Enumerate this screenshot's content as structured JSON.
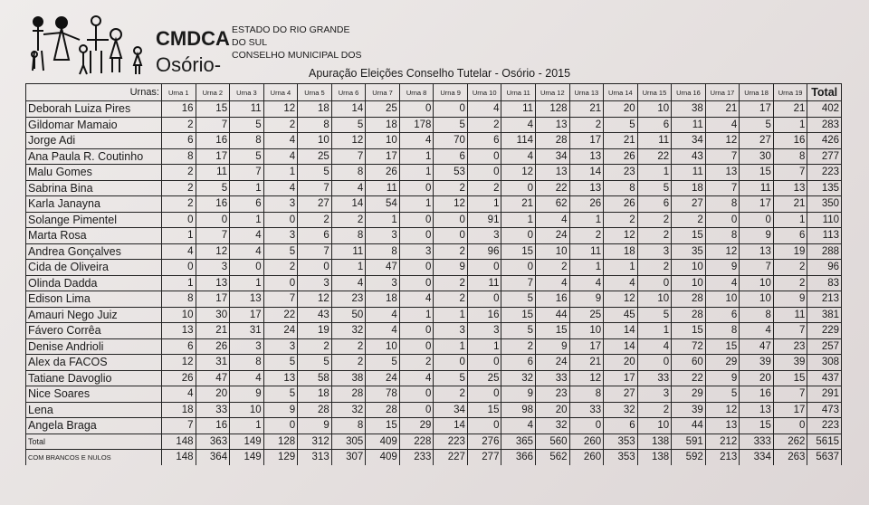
{
  "header": {
    "org": "CMDCA",
    "city": "Osório-",
    "lines": [
      "ESTADO DO RIO GRANDE",
      "DO SUL",
      "CONSELHO MUNICIPAL DOS"
    ],
    "title": "Apuração Eleições Conselho Tutelar - Osório - 2015"
  },
  "table": {
    "corner_label": "Urnas:",
    "columns": [
      "Urna 1",
      "Urna 2",
      "Urna 3",
      "Urna 4",
      "Urna 5",
      "Urna 6",
      "Urna 7",
      "Urna 8",
      "Urna 9",
      "Urna 10",
      "Urna 11",
      "Urna 12",
      "Urna 13",
      "Urna 14",
      "Urna 15",
      "Urna 16",
      "Urna 17",
      "Urna 18",
      "Urna 19",
      "Total"
    ],
    "rows": [
      {
        "name": "Deborah Luiza Pires",
        "values": [
          16,
          15,
          11,
          12,
          18,
          14,
          25,
          0,
          0,
          4,
          11,
          128,
          21,
          20,
          10,
          38,
          21,
          17,
          21,
          402
        ]
      },
      {
        "name": "Gildomar Mamaio",
        "values": [
          2,
          7,
          5,
          2,
          8,
          5,
          18,
          178,
          5,
          2,
          4,
          13,
          2,
          5,
          6,
          11,
          4,
          5,
          1,
          283
        ]
      },
      {
        "name": "Jorge Adi",
        "values": [
          6,
          16,
          8,
          4,
          10,
          12,
          10,
          4,
          70,
          6,
          114,
          28,
          17,
          21,
          11,
          34,
          12,
          27,
          16,
          426
        ]
      },
      {
        "name": "Ana Paula R. Coutinho",
        "values": [
          8,
          17,
          5,
          4,
          25,
          7,
          17,
          1,
          6,
          0,
          4,
          34,
          13,
          26,
          22,
          43,
          7,
          30,
          8,
          277
        ]
      },
      {
        "name": "Malu Gomes",
        "values": [
          2,
          11,
          7,
          1,
          5,
          8,
          26,
          1,
          53,
          0,
          12,
          13,
          14,
          23,
          1,
          11,
          13,
          15,
          7,
          223
        ]
      },
      {
        "name": "Sabrina Bina",
        "values": [
          2,
          5,
          1,
          4,
          7,
          4,
          11,
          0,
          2,
          2,
          0,
          22,
          13,
          8,
          5,
          18,
          7,
          11,
          13,
          135
        ]
      },
      {
        "name": "Karla Janayna",
        "values": [
          2,
          16,
          6,
          3,
          27,
          14,
          54,
          1,
          12,
          1,
          21,
          62,
          26,
          26,
          6,
          27,
          8,
          17,
          21,
          350
        ]
      },
      {
        "name": "Solange Pimentel",
        "values": [
          0,
          0,
          1,
          0,
          2,
          2,
          1,
          0,
          0,
          91,
          1,
          4,
          1,
          2,
          2,
          2,
          0,
          0,
          1,
          110
        ]
      },
      {
        "name": "Marta Rosa",
        "values": [
          1,
          7,
          4,
          3,
          6,
          8,
          3,
          0,
          0,
          3,
          0,
          24,
          2,
          12,
          2,
          15,
          8,
          9,
          6,
          113
        ]
      },
      {
        "name": "Andrea  Gonçalves",
        "values": [
          4,
          12,
          4,
          5,
          7,
          11,
          8,
          3,
          2,
          96,
          15,
          10,
          11,
          18,
          3,
          35,
          12,
          13,
          19,
          288
        ]
      },
      {
        "name": "Cida de Oliveira",
        "values": [
          0,
          3,
          0,
          2,
          0,
          1,
          47,
          0,
          9,
          0,
          0,
          2,
          1,
          1,
          2,
          10,
          9,
          7,
          2,
          96
        ]
      },
      {
        "name": "Olinda Dadda",
        "values": [
          1,
          13,
          1,
          0,
          3,
          4,
          3,
          0,
          2,
          11,
          7,
          4,
          4,
          4,
          0,
          10,
          4,
          10,
          2,
          83
        ]
      },
      {
        "name": "Edison Lima",
        "values": [
          8,
          17,
          13,
          7,
          12,
          23,
          18,
          4,
          2,
          0,
          5,
          16,
          9,
          12,
          10,
          28,
          10,
          10,
          9,
          213
        ]
      },
      {
        "name": "Amauri Nego Juiz",
        "values": [
          10,
          30,
          17,
          22,
          43,
          50,
          4,
          1,
          1,
          16,
          15,
          44,
          25,
          45,
          5,
          28,
          6,
          8,
          11,
          381
        ]
      },
      {
        "name": "Fávero Corrêa",
        "values": [
          13,
          21,
          31,
          24,
          19,
          32,
          4,
          0,
          3,
          3,
          5,
          15,
          10,
          14,
          1,
          15,
          8,
          4,
          7,
          229
        ]
      },
      {
        "name": "Denise Andrioli",
        "values": [
          6,
          26,
          3,
          3,
          2,
          2,
          10,
          0,
          1,
          1,
          2,
          9,
          17,
          14,
          4,
          72,
          15,
          47,
          23,
          257
        ]
      },
      {
        "name": "Alex da FACOS",
        "values": [
          12,
          31,
          8,
          5,
          5,
          2,
          5,
          2,
          0,
          0,
          6,
          24,
          21,
          20,
          0,
          60,
          29,
          39,
          39,
          308
        ]
      },
      {
        "name": "Tatiane Davoglio",
        "values": [
          26,
          47,
          4,
          13,
          58,
          38,
          24,
          4,
          5,
          25,
          32,
          33,
          12,
          17,
          33,
          22,
          9,
          20,
          15,
          437
        ]
      },
      {
        "name": "Nice Soares",
        "values": [
          4,
          20,
          9,
          5,
          18,
          28,
          78,
          0,
          2,
          0,
          9,
          23,
          8,
          27,
          3,
          29,
          5,
          16,
          7,
          291
        ]
      },
      {
        "name": "Lena",
        "values": [
          18,
          33,
          10,
          9,
          28,
          32,
          28,
          0,
          34,
          15,
          98,
          20,
          33,
          32,
          2,
          39,
          12,
          13,
          17,
          473
        ]
      },
      {
        "name": "Angela Braga",
        "values": [
          7,
          16,
          1,
          0,
          9,
          8,
          15,
          29,
          14,
          0,
          4,
          32,
          0,
          6,
          10,
          44,
          13,
          15,
          0,
          223
        ]
      }
    ],
    "total_row": {
      "name": "Total",
      "values": [
        148,
        363,
        149,
        128,
        312,
        305,
        409,
        228,
        223,
        276,
        365,
        560,
        260,
        353,
        138,
        591,
        212,
        333,
        262,
        5615
      ]
    },
    "with_blank_null_row": {
      "name": "COM BRANCOS E NULOS",
      "values": [
        148,
        364,
        149,
        129,
        313,
        307,
        409,
        233,
        227,
        277,
        366,
        562,
        260,
        353,
        138,
        592,
        213,
        334,
        263,
        5637
      ]
    }
  }
}
